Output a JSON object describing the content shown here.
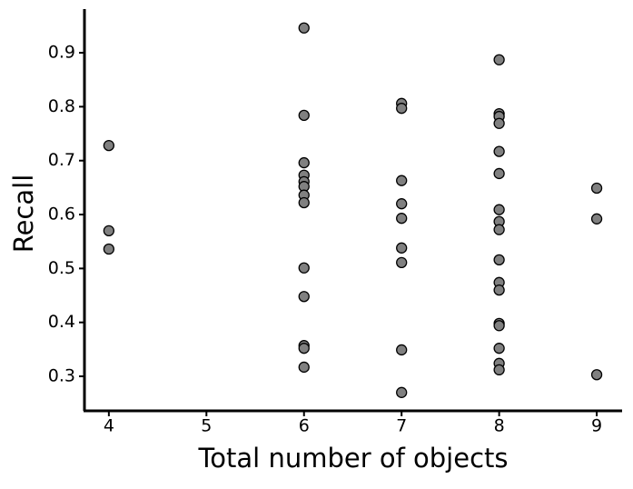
{
  "chart_data": {
    "type": "scatter",
    "xlabel": "Total number of objects",
    "ylabel": "Recall",
    "x": [
      4,
      4,
      4,
      6,
      6,
      6,
      6,
      6,
      6,
      6,
      6,
      6,
      6,
      6,
      6,
      6,
      7,
      7,
      7,
      7,
      7,
      7,
      7,
      7,
      7,
      8,
      8,
      8,
      8,
      8,
      8,
      8,
      8,
      8,
      8,
      8,
      8,
      8,
      8,
      8,
      8,
      8,
      9,
      9,
      9
    ],
    "y": [
      0.728,
      0.57,
      0.536,
      0.946,
      0.784,
      0.696,
      0.673,
      0.661,
      0.652,
      0.636,
      0.622,
      0.501,
      0.448,
      0.357,
      0.352,
      0.317,
      0.806,
      0.797,
      0.663,
      0.62,
      0.593,
      0.538,
      0.511,
      0.349,
      0.27,
      0.887,
      0.787,
      0.782,
      0.769,
      0.717,
      0.676,
      0.609,
      0.587,
      0.572,
      0.516,
      0.474,
      0.46,
      0.398,
      0.394,
      0.352,
      0.324,
      0.312,
      0.649,
      0.592,
      0.303
    ],
    "color": "#808080",
    "xlim": [
      3.75,
      9.26
    ],
    "ylim": [
      0.236,
      0.981
    ],
    "xticks": [
      4,
      5,
      6,
      7,
      8,
      9
    ],
    "yticks": [
      0.3,
      0.4,
      0.5,
      0.6,
      0.7,
      0.8,
      0.9
    ]
  }
}
